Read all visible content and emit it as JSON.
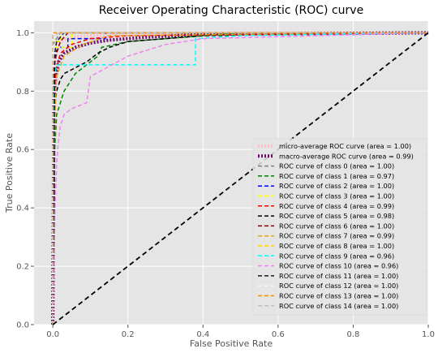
{
  "chart_data": {
    "type": "line",
    "title": "Receiver Operating Characteristic (ROC) curve",
    "xlabel": "False Positive Rate",
    "ylabel": "True Positive Rate",
    "xlim": [
      -0.05,
      1.0
    ],
    "ylim": [
      0.0,
      1.04
    ],
    "xticks": [
      0.0,
      0.2,
      0.4,
      0.6,
      0.8,
      1.0
    ],
    "yticks": [
      0.0,
      0.2,
      0.4,
      0.6,
      0.8,
      1.0
    ],
    "xtick_labels": [
      "0.0",
      "0.2",
      "0.4",
      "0.6",
      "0.8",
      "1.0"
    ],
    "ytick_labels": [
      "0.0",
      "0.2",
      "0.4",
      "0.6",
      "0.8",
      "1.0"
    ],
    "grid": true,
    "background": "#e5e5e5",
    "legend_position": "lower-right",
    "chance_line": {
      "x": [
        0,
        1
      ],
      "y": [
        0,
        1
      ],
      "color": "#000000",
      "dash": "dashed"
    },
    "series": [
      {
        "name": "micro-average ROC curve (area = 1.00)",
        "color": "#ffc0cb",
        "width": 4,
        "dash": "dotted",
        "x": [
          0,
          0.002,
          0.005,
          0.01,
          0.02,
          0.05,
          0.1,
          0.2,
          0.3,
          0.5,
          1.0
        ],
        "y": [
          0,
          0.8,
          0.9,
          0.95,
          0.97,
          0.985,
          0.99,
          0.995,
          0.997,
          0.999,
          1.0
        ]
      },
      {
        "name": "macro-average ROC curve (area = 0.99)",
        "color": "#6a0d6a",
        "width": 4,
        "dash": "dotted",
        "x": [
          0,
          0.003,
          0.008,
          0.015,
          0.03,
          0.06,
          0.1,
          0.15,
          0.25,
          0.4,
          1.0
        ],
        "y": [
          0,
          0.78,
          0.85,
          0.9,
          0.93,
          0.95,
          0.965,
          0.975,
          0.985,
          0.995,
          1.0
        ]
      },
      {
        "name": "ROC curve of class 0 (area = 1.00)",
        "color": "#808080",
        "width": 1.5,
        "dash": "dashed",
        "x": [
          0,
          0,
          0.01,
          0.02,
          1.0
        ],
        "y": [
          0,
          0.96,
          0.98,
          1.0,
          1.0
        ]
      },
      {
        "name": "ROC curve of class 1 (area = 0.97)",
        "color": "#008000",
        "width": 1.5,
        "dash": "dashed",
        "x": [
          0,
          0.005,
          0.01,
          0.02,
          0.03,
          0.05,
          0.06,
          0.08,
          0.1,
          0.12,
          0.13,
          0.2,
          0.3,
          0.4,
          0.5,
          1.0
        ],
        "y": [
          0,
          0.6,
          0.72,
          0.76,
          0.8,
          0.84,
          0.86,
          0.88,
          0.9,
          0.92,
          0.95,
          0.97,
          0.98,
          0.99,
          1.0,
          1.0
        ]
      },
      {
        "name": "ROC curve of class 2 (area = 1.00)",
        "color": "#0000ff",
        "width": 1.5,
        "dash": "dashed",
        "x": [
          0,
          0.005,
          0.01,
          0.02,
          0.04,
          0.04,
          0.14,
          0.14,
          1.0
        ],
        "y": [
          0,
          0.9,
          0.94,
          0.95,
          0.95,
          0.98,
          0.98,
          1.0,
          1.0
        ]
      },
      {
        "name": "ROC curve of class 3 (area = 1.00)",
        "color": "#ffff00",
        "width": 1.5,
        "dash": "dashed",
        "x": [
          0,
          0,
          0.05,
          0.05,
          1.0
        ],
        "y": [
          0,
          0.95,
          0.95,
          1.0,
          1.0
        ]
      },
      {
        "name": "ROC curve of class 4 (area = 0.99)",
        "color": "#ff0000",
        "width": 1.5,
        "dash": "dashed",
        "x": [
          0,
          0.003,
          0.01,
          0.02,
          0.05,
          0.1,
          0.2,
          1.0
        ],
        "y": [
          0,
          0.8,
          0.88,
          0.93,
          0.96,
          0.98,
          0.99,
          1.0
        ]
      },
      {
        "name": "ROC curve of class 5 (area = 0.98)",
        "color": "#000000",
        "width": 1.5,
        "dash": "dashed",
        "x": [
          0,
          0.005,
          0.01,
          0.02,
          0.03,
          0.06,
          0.09,
          0.12,
          0.15,
          0.2,
          0.3,
          0.4,
          1.0
        ],
        "y": [
          0,
          0.75,
          0.8,
          0.84,
          0.86,
          0.88,
          0.9,
          0.93,
          0.95,
          0.97,
          0.98,
          0.99,
          1.0
        ]
      },
      {
        "name": "ROC curve of class 6 (area = 1.00)",
        "color": "#8b0000",
        "width": 1.5,
        "dash": "dashed",
        "x": [
          0,
          0.003,
          0.01,
          0.02,
          0.04,
          1.0
        ],
        "y": [
          0,
          0.88,
          0.93,
          0.97,
          1.0,
          1.0
        ]
      },
      {
        "name": "ROC curve of class 7 (area = 0.99)",
        "color": "#daa520",
        "width": 1.5,
        "dash": "dashed",
        "x": [
          0,
          0.003,
          0.006,
          0.01,
          0.03,
          0.08,
          0.15,
          1.0
        ],
        "y": [
          0,
          0.5,
          0.72,
          0.85,
          0.92,
          0.96,
          0.99,
          1.0
        ]
      },
      {
        "name": "ROC curve of class 8 (area = 1.00)",
        "color": "#ffd700",
        "width": 1.5,
        "dash": "dashed",
        "x": [
          0,
          0,
          0.02,
          0.02,
          1.0
        ],
        "y": [
          0,
          0.97,
          0.97,
          1.0,
          1.0
        ]
      },
      {
        "name": "ROC curve of class 9 (area = 0.96)",
        "color": "#00ffff",
        "width": 1.5,
        "dash": "dashed",
        "x": [
          0,
          0.003,
          0.005,
          0.01,
          0.02,
          0.38,
          0.38,
          0.5,
          1.0
        ],
        "y": [
          0,
          0.8,
          0.86,
          0.89,
          0.89,
          0.89,
          0.98,
          0.99,
          1.0
        ]
      },
      {
        "name": "ROC curve of class 10 (area = 0.96)",
        "color": "#ee82ee",
        "width": 1.5,
        "dash": "dashed",
        "x": [
          0,
          0.003,
          0.006,
          0.01,
          0.015,
          0.02,
          0.03,
          0.05,
          0.07,
          0.09,
          0.1,
          0.2,
          0.3,
          0.4,
          1.0
        ],
        "y": [
          0,
          0.2,
          0.4,
          0.55,
          0.63,
          0.68,
          0.72,
          0.74,
          0.75,
          0.76,
          0.85,
          0.92,
          0.96,
          0.98,
          1.0
        ]
      },
      {
        "name": "ROC curve of class 11 (area = 1.00)",
        "color": "#1a1a1a",
        "width": 1.5,
        "dash": "dashed",
        "x": [
          0,
          0.005,
          0.01,
          0.03,
          1.0
        ],
        "y": [
          0,
          0.93,
          0.97,
          1.0,
          1.0
        ]
      },
      {
        "name": "ROC curve of class 12 (area = 1.00)",
        "color": "#f5f5f5",
        "width": 1.5,
        "dash": "dashed",
        "x": [
          0,
          0,
          0.01,
          1.0
        ],
        "y": [
          0,
          0.99,
          1.0,
          1.0
        ]
      },
      {
        "name": "ROC curve of class 13 (area = 1.00)",
        "color": "#ff8c00",
        "width": 1.5,
        "dash": "dashed",
        "x": [
          0,
          0,
          0.01,
          1.0
        ],
        "y": [
          0,
          1.0,
          1.0,
          1.0
        ]
      },
      {
        "name": "ROC curve of class 14 (area = 1.00)",
        "color": "#c0c0c0",
        "width": 1.5,
        "dash": "dashed",
        "x": [
          0,
          0,
          0.02,
          1.0
        ],
        "y": [
          0,
          0.99,
          1.0,
          1.0
        ]
      }
    ]
  }
}
